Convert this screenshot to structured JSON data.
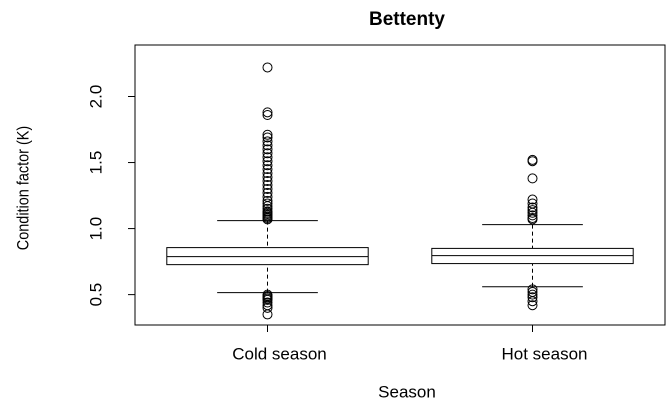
{
  "chart_data": {
    "type": "box",
    "title": "Bettenty",
    "xlabel": "Season",
    "ylabel": "Condition factor (K)",
    "categories": [
      "Cold season",
      "Hot season"
    ],
    "boxes": [
      {
        "whisker_low": 0.515,
        "q1": 0.727,
        "median": 0.788,
        "q3": 0.856,
        "whisker_high": 1.06,
        "outliers": [
          1.07,
          1.08,
          1.09,
          1.1,
          1.11,
          1.12,
          1.13,
          1.15,
          1.17,
          1.19,
          1.21,
          1.24,
          1.27,
          1.3,
          1.33,
          1.36,
          1.39,
          1.42,
          1.45,
          1.48,
          1.51,
          1.54,
          1.57,
          1.6,
          1.63,
          1.66,
          1.69,
          1.71,
          1.86,
          1.88,
          2.22,
          0.5,
          0.49,
          0.48,
          0.47,
          0.46,
          0.44,
          0.42,
          0.4,
          0.35
        ]
      },
      {
        "whisker_low": 0.56,
        "q1": 0.735,
        "median": 0.795,
        "q3": 0.85,
        "whisker_high": 1.03,
        "outliers": [
          1.07,
          1.08,
          1.1,
          1.12,
          1.14,
          1.16,
          1.19,
          1.22,
          1.38,
          1.51,
          1.52,
          0.54,
          0.52,
          0.5,
          0.48,
          0.45,
          0.42
        ]
      }
    ],
    "ylim": [
      0.27,
      2.39
    ],
    "yticks": [
      0.5,
      {
        "value": 1,
        "label": "1.0"
      },
      1.5,
      {
        "value": 2,
        "label": "2.0"
      }
    ],
    "color": "#000000"
  }
}
